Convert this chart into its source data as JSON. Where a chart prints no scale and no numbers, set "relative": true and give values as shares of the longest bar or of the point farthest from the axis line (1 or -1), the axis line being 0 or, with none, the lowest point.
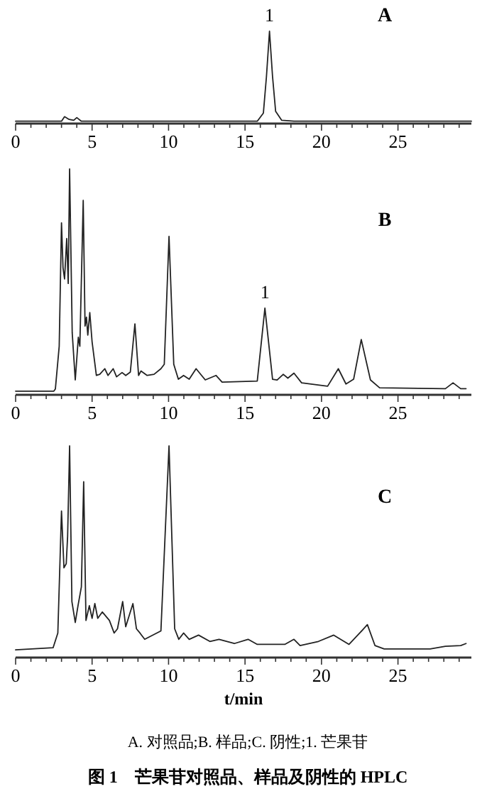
{
  "chart_data": [
    {
      "type": "line",
      "relative": true,
      "title": "A",
      "xlim": [
        0,
        29.8
      ],
      "xticks": [
        0,
        {
          "value": 1,
          "label": null
        },
        {
          "value": 2,
          "label": null
        },
        {
          "value": 3,
          "label": null
        },
        {
          "value": 4,
          "label": null
        },
        5,
        {
          "value": 6,
          "label": null
        },
        {
          "value": 7,
          "label": null
        },
        {
          "value": 8,
          "label": null
        },
        {
          "value": 9,
          "label": null
        },
        10,
        {
          "value": 11,
          "label": null
        },
        {
          "value": 12,
          "label": null
        },
        {
          "value": 13,
          "label": null
        },
        {
          "value": 14,
          "label": null
        },
        15,
        {
          "value": 16,
          "label": null
        },
        {
          "value": 17,
          "label": null
        },
        {
          "value": 18,
          "label": null
        },
        {
          "value": 19,
          "label": null
        },
        20,
        {
          "value": 21,
          "label": null
        },
        {
          "value": 22,
          "label": null
        },
        {
          "value": 23,
          "label": null
        },
        {
          "value": 24,
          "label": null
        },
        25,
        {
          "value": 26,
          "label": null
        },
        {
          "value": 27,
          "label": null
        },
        {
          "value": 28,
          "label": null
        },
        {
          "value": 29,
          "label": null
        }
      ],
      "annotations": [
        {
          "text": "1",
          "x": 16.6,
          "y": 1
        }
      ],
      "series": [
        {
          "color": "#222222",
          "x": [
            0,
            3,
            3.2,
            3.5,
            3.8,
            4.0,
            4.3,
            5,
            7,
            15.8,
            16.2,
            16.4,
            16.6,
            16.8,
            17.0,
            17.4,
            18.2,
            29.8
          ],
          "values": [
            0.01,
            0.01,
            0.06,
            0.03,
            0.02,
            0.05,
            0.01,
            0.01,
            0.01,
            0.01,
            0.1,
            0.5,
            1,
            0.5,
            0.12,
            0.02,
            0.01,
            0.01
          ]
        }
      ]
    },
    {
      "type": "line",
      "relative": true,
      "title": "B",
      "xlim": [
        0,
        29.8
      ],
      "xticks": [
        0,
        {
          "value": 1,
          "label": null
        },
        {
          "value": 2,
          "label": null
        },
        {
          "value": 3,
          "label": null
        },
        {
          "value": 4,
          "label": null
        },
        5,
        {
          "value": 6,
          "label": null
        },
        {
          "value": 7,
          "label": null
        },
        {
          "value": 8,
          "label": null
        },
        {
          "value": 9,
          "label": null
        },
        10,
        {
          "value": 11,
          "label": null
        },
        {
          "value": 12,
          "label": null
        },
        {
          "value": 13,
          "label": null
        },
        {
          "value": 14,
          "label": null
        },
        15,
        {
          "value": 16,
          "label": null
        },
        {
          "value": 17,
          "label": null
        },
        {
          "value": 18,
          "label": null
        },
        {
          "value": 19,
          "label": null
        },
        20,
        {
          "value": 21,
          "label": null
        },
        {
          "value": 22,
          "label": null
        },
        {
          "value": 23,
          "label": null
        },
        {
          "value": 24,
          "label": null
        },
        25,
        {
          "value": 26,
          "label": null
        },
        {
          "value": 27,
          "label": null
        },
        {
          "value": 28,
          "label": null
        },
        {
          "value": 29,
          "label": null
        }
      ],
      "annotations": [
        {
          "text": "1",
          "x": 16.3,
          "y": 0.38
        }
      ],
      "series": [
        {
          "color": "#222222",
          "x": [
            0,
            2.5,
            2.6,
            2.85,
            3.0,
            3.1,
            3.2,
            3.34,
            3.44,
            3.53,
            3.7,
            3.9,
            4.1,
            4.2,
            4.42,
            4.54,
            4.63,
            4.72,
            4.85,
            5.0,
            5.28,
            5.5,
            5.83,
            6.04,
            6.38,
            6.6,
            6.96,
            7.2,
            7.5,
            7.8,
            8.04,
            8.2,
            8.6,
            9.05,
            9.5,
            9.72,
            10.03,
            10.34,
            10.64,
            10.98,
            11.35,
            11.8,
            12.4,
            13.1,
            13.5,
            15.8,
            16.3,
            16.8,
            17.1,
            17.5,
            17.8,
            18.2,
            18.7,
            20.4,
            21.1,
            21.6,
            22.1,
            22.6,
            23.2,
            23.8,
            28.1,
            28.6,
            29.1,
            29.45
          ],
          "values": [
            0.01,
            0.01,
            0.02,
            0.21,
            0.76,
            0.56,
            0.51,
            0.69,
            0.49,
            1.0,
            0.27,
            0.06,
            0.25,
            0.21,
            0.86,
            0.3,
            0.34,
            0.26,
            0.36,
            0.23,
            0.08,
            0.085,
            0.11,
            0.08,
            0.11,
            0.074,
            0.093,
            0.08,
            0.095,
            0.31,
            0.08,
            0.1,
            0.08,
            0.085,
            0.11,
            0.13,
            0.7,
            0.13,
            0.063,
            0.08,
            0.063,
            0.11,
            0.06,
            0.08,
            0.05,
            0.055,
            0.38,
            0.063,
            0.06,
            0.085,
            0.068,
            0.09,
            0.047,
            0.032,
            0.11,
            0.042,
            0.063,
            0.24,
            0.06,
            0.025,
            0.021,
            0.047,
            0.021,
            0.021
          ]
        }
      ]
    },
    {
      "type": "line",
      "relative": true,
      "title": "C",
      "xlabel": "t/min",
      "xlim": [
        0,
        29.8
      ],
      "xticks": [
        0,
        {
          "value": 1,
          "label": null
        },
        {
          "value": 2,
          "label": null
        },
        {
          "value": 3,
          "label": null
        },
        {
          "value": 4,
          "label": null
        },
        5,
        {
          "value": 6,
          "label": null
        },
        {
          "value": 7,
          "label": null
        },
        {
          "value": 8,
          "label": null
        },
        {
          "value": 9,
          "label": null
        },
        10,
        {
          "value": 11,
          "label": null
        },
        {
          "value": 12,
          "label": null
        },
        {
          "value": 13,
          "label": null
        },
        {
          "value": 14,
          "label": null
        },
        15,
        {
          "value": 16,
          "label": null
        },
        {
          "value": 17,
          "label": null
        },
        {
          "value": 18,
          "label": null
        },
        {
          "value": 19,
          "label": null
        },
        20,
        {
          "value": 21,
          "label": null
        },
        {
          "value": 22,
          "label": null
        },
        {
          "value": 23,
          "label": null
        },
        {
          "value": 24,
          "label": null
        },
        25,
        {
          "value": 26,
          "label": null
        },
        {
          "value": 27,
          "label": null
        },
        {
          "value": 28,
          "label": null
        },
        {
          "value": 29,
          "label": null
        }
      ],
      "annotations": [
        "A. 对照品;B. 样品;C. 阴性;1. 芒果苷",
        "图 1　芒果苷对照品、样品及阴性的 HPLC"
      ],
      "series": [
        {
          "color": "#222222",
          "x": [
            0,
            2.45,
            2.76,
            3.0,
            3.16,
            3.31,
            3.4,
            3.53,
            3.68,
            3.9,
            4.08,
            4.3,
            4.45,
            4.6,
            4.82,
            5.0,
            5.18,
            5.37,
            5.67,
            6.13,
            6.44,
            6.66,
            7.0,
            7.2,
            7.67,
            7.9,
            8.13,
            8.44,
            9.5,
            10.03,
            10.4,
            10.67,
            10.98,
            11.35,
            11.96,
            12.7,
            13.3,
            14.3,
            15.2,
            15.8,
            17.6,
            18.2,
            18.6,
            19.8,
            20.8,
            21.8,
            22.5,
            23.0,
            23.5,
            24.1,
            27.1,
            28.1,
            29.1,
            29.45
          ],
          "values": [
            0.03,
            0.04,
            0.11,
            0.69,
            0.42,
            0.44,
            0.57,
            1.0,
            0.26,
            0.16,
            0.24,
            0.33,
            0.83,
            0.17,
            0.24,
            0.18,
            0.25,
            0.18,
            0.21,
            0.17,
            0.11,
            0.13,
            0.26,
            0.14,
            0.25,
            0.13,
            0.11,
            0.08,
            0.12,
            1.0,
            0.13,
            0.08,
            0.11,
            0.08,
            0.1,
            0.07,
            0.08,
            0.06,
            0.08,
            0.056,
            0.056,
            0.08,
            0.05,
            0.07,
            0.1,
            0.056,
            0.11,
            0.15,
            0.05,
            0.034,
            0.034,
            0.047,
            0.05,
            0.06
          ]
        }
      ]
    }
  ]
}
